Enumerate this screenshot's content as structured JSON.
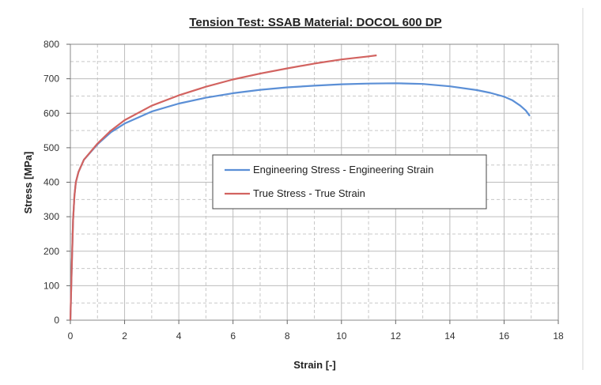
{
  "chart_data": {
    "type": "line",
    "title": "Tension Test: SSAB Material: DOCOL 600 DP",
    "xlabel": "Strain [-]",
    "ylabel": "Stress [MPa]",
    "xlim": [
      0,
      18
    ],
    "ylim": [
      0,
      800
    ],
    "x_ticks": [
      0,
      2,
      4,
      6,
      8,
      10,
      12,
      14,
      16,
      18
    ],
    "y_ticks": [
      0,
      100,
      200,
      300,
      400,
      500,
      600,
      700,
      800
    ],
    "x_tick_labels": [
      "0",
      "2",
      "4",
      "6",
      "8",
      "10",
      "12",
      "14",
      "16",
      "18"
    ],
    "y_tick_labels": [
      "0",
      "100",
      "200",
      "300",
      "400",
      "500",
      "600",
      "700",
      "800"
    ],
    "grid": true,
    "legend_position": "center-right",
    "series": [
      {
        "name": "Engineering Stress - Engineering Strain",
        "color": "#5b8fd6",
        "x": [
          0,
          0.05,
          0.1,
          0.15,
          0.2,
          0.3,
          0.5,
          1,
          1.5,
          2,
          3,
          4,
          5,
          6,
          7,
          8,
          9,
          10,
          11,
          12,
          13,
          14,
          15,
          15.5,
          16,
          16.3,
          16.6,
          16.8,
          16.95
        ],
        "y": [
          0,
          150,
          290,
          360,
          400,
          430,
          465,
          510,
          545,
          570,
          605,
          628,
          645,
          658,
          668,
          675,
          680,
          684,
          686,
          687,
          685,
          678,
          667,
          659,
          648,
          638,
          622,
          608,
          592
        ]
      },
      {
        "name": "True Stress - True Strain",
        "color": "#d26360",
        "x": [
          0,
          0.05,
          0.1,
          0.15,
          0.2,
          0.3,
          0.5,
          1,
          1.5,
          2,
          3,
          4,
          5,
          6,
          7,
          8,
          9,
          10,
          11,
          11.3
        ],
        "y": [
          0,
          150,
          290,
          360,
          400,
          430,
          465,
          512,
          550,
          580,
          622,
          652,
          677,
          698,
          715,
          730,
          744,
          756,
          765,
          768
        ]
      }
    ]
  }
}
